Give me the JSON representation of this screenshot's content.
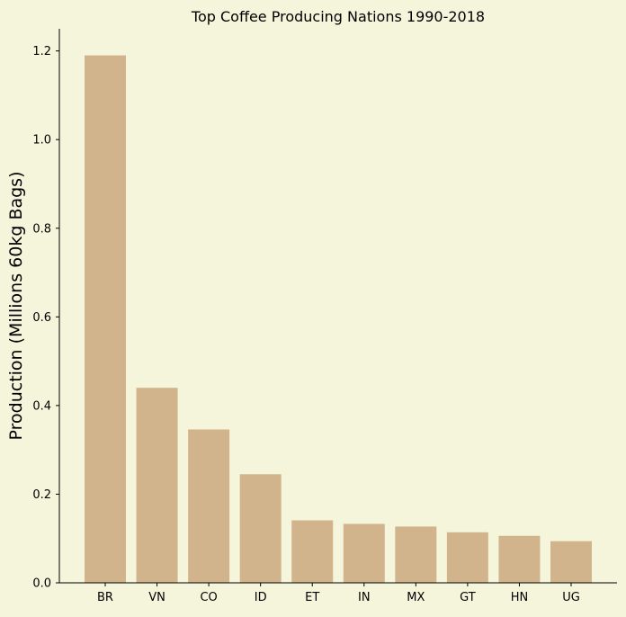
{
  "chart_data": {
    "type": "bar",
    "title": "Top Coffee Producing Nations 1990-2018",
    "xlabel": "",
    "ylabel": "Production (Millions 60kg Bags)",
    "categories": [
      "BR",
      "VN",
      "CO",
      "ID",
      "ET",
      "IN",
      "MX",
      "GT",
      "HN",
      "UG"
    ],
    "values": [
      1.19,
      0.44,
      0.346,
      0.245,
      0.141,
      0.133,
      0.127,
      0.114,
      0.106,
      0.094
    ],
    "ylim": [
      0,
      1.25
    ],
    "yticks": [
      "0.0",
      "0.2",
      "0.4",
      "0.6",
      "0.8",
      "1.0",
      "1.2"
    ],
    "grid": false,
    "legend": "none"
  },
  "colors": {
    "background": "#f5f5dc",
    "bar": "#d2b48c",
    "axis": "#000000",
    "text": "#000000"
  }
}
